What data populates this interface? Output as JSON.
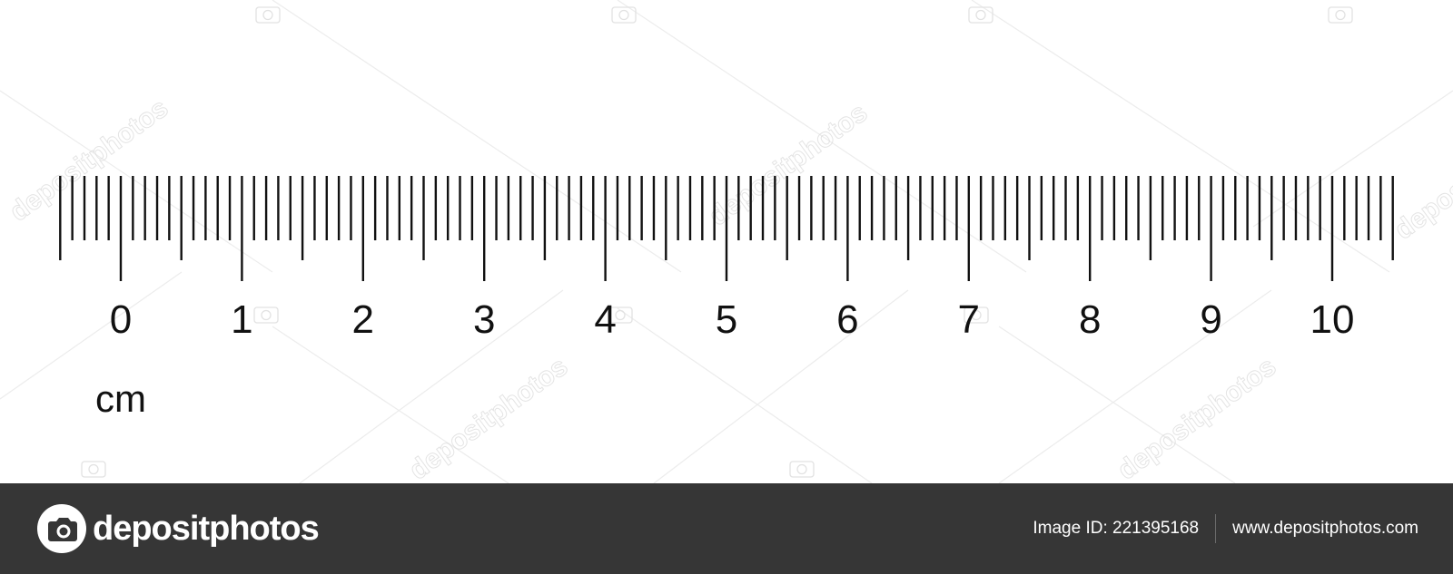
{
  "ruler": {
    "numbers": [
      "0",
      "1",
      "2",
      "3",
      "4",
      "5",
      "6",
      "7",
      "8",
      "9",
      "10"
    ],
    "unit": "cm",
    "tick_color": "#111111"
  },
  "watermark": {
    "text": "depositphotos",
    "color": "#d9d9d9"
  },
  "footer": {
    "background": "#363636",
    "brand": "depositphotos",
    "image_id_label": "Image ID: 221395168",
    "website": "www.depositphotos.com"
  }
}
